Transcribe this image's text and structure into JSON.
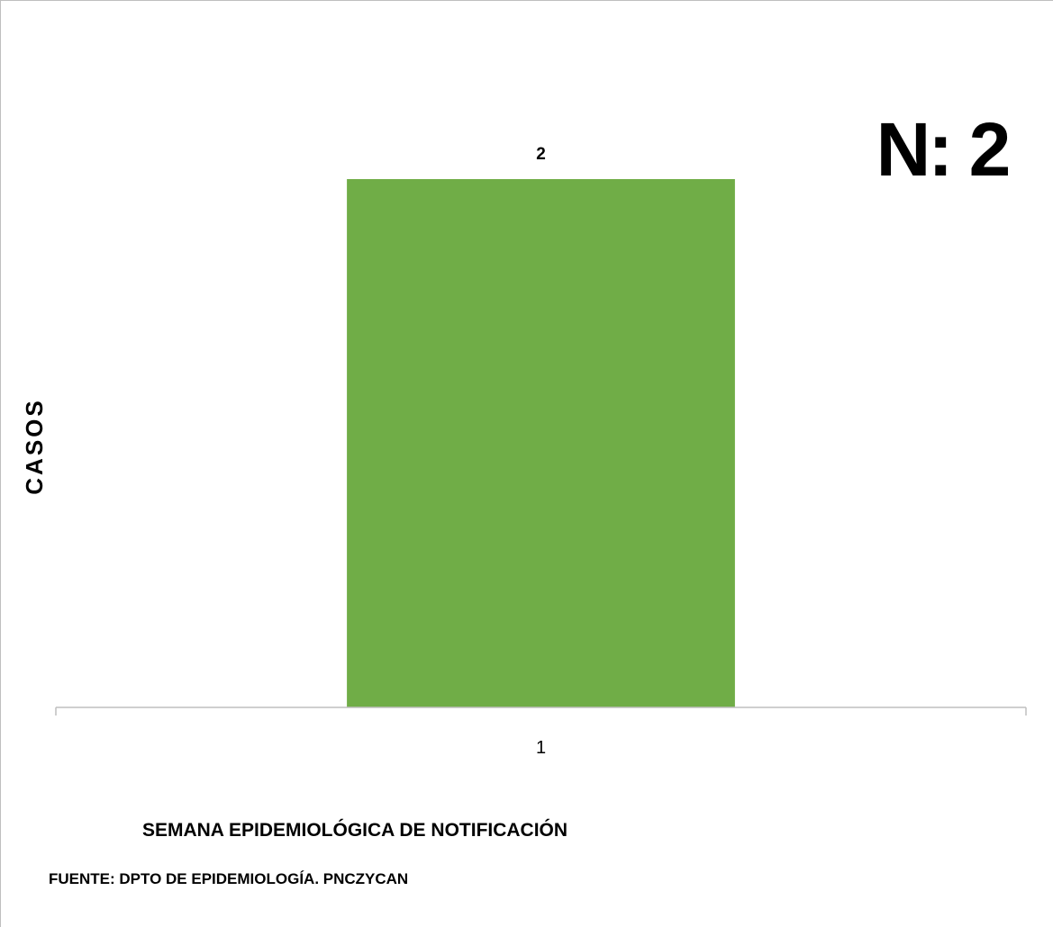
{
  "chart_data": {
    "type": "bar",
    "categories": [
      "1"
    ],
    "values": [
      2
    ],
    "data_labels": [
      "2"
    ],
    "ylim": [
      0,
      2
    ],
    "grid": false,
    "bar_color": "#70AD47",
    "axis_color": "#bfbfbf",
    "ylabel": "CASOS",
    "xlabel": "SEMANA EPIDEMIOLÓGICA  DE NOTIFICACIÓN",
    "annotation": "N: 2",
    "source": "FUENTE: DPTO DE EPIDEMIOLOGÍA. PNCZYCAN"
  }
}
